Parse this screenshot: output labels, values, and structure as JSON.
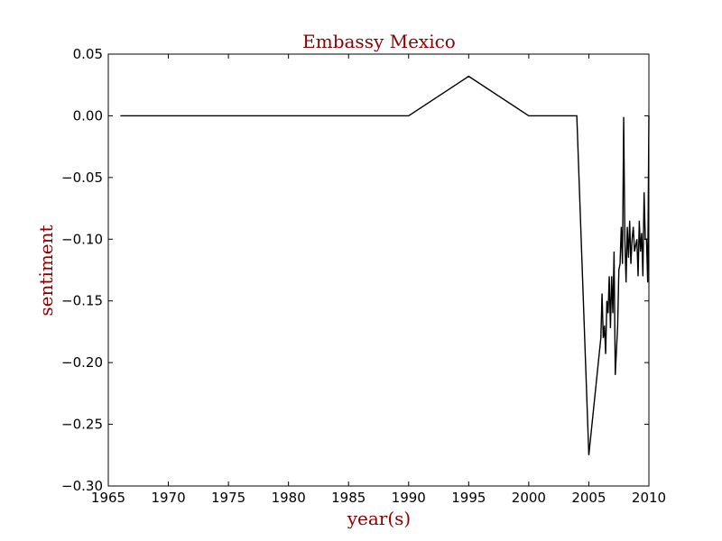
{
  "colors": {
    "label_color": "#8b0000",
    "line_color": "#000000",
    "frame_color": "#000000"
  },
  "chart_data": {
    "type": "line",
    "title": "Embassy Mexico",
    "xlabel": "year(s)",
    "ylabel": "sentiment",
    "xlim": [
      1965,
      2010
    ],
    "ylim": [
      -0.3,
      0.05
    ],
    "grid": false,
    "x_ticks": [
      1965,
      1970,
      1975,
      1980,
      1985,
      1990,
      1995,
      2000,
      2005,
      2010
    ],
    "x_tick_labels": [
      "1965",
      "1970",
      "1975",
      "1980",
      "1985",
      "1990",
      "1995",
      "2000",
      "2005",
      "2010"
    ],
    "y_ticks": [
      0.05,
      0.0,
      -0.05,
      -0.1,
      -0.15,
      -0.2,
      -0.25,
      -0.3
    ],
    "y_tick_labels": [
      "0.05",
      "0.00",
      "−0.05",
      "−0.10",
      "−0.15",
      "−0.20",
      "−0.25",
      "−0.30"
    ],
    "series": [
      {
        "x": [
          1966.0,
          1990.0,
          1995.0,
          2000.0,
          2004.0,
          2005.0,
          2006.0,
          2006.1,
          2006.2,
          2006.3,
          2006.4,
          2006.5,
          2006.6,
          2006.7,
          2006.8,
          2006.9,
          2007.0,
          2007.1,
          2007.2,
          2007.3,
          2007.4,
          2007.5,
          2007.6,
          2007.7,
          2007.8,
          2007.9,
          2008.0,
          2008.1,
          2008.2,
          2008.3,
          2008.4,
          2008.5,
          2008.6,
          2008.7,
          2008.8,
          2008.9,
          2009.0,
          2009.1,
          2009.2,
          2009.3,
          2009.4,
          2009.5,
          2009.6,
          2009.7,
          2009.8,
          2009.9,
          2010.0
        ],
        "y": [
          0.0,
          0.0,
          0.032,
          0.0,
          0.0,
          -0.275,
          -0.18,
          -0.144,
          -0.18,
          -0.17,
          -0.193,
          -0.15,
          -0.16,
          -0.13,
          -0.172,
          -0.13,
          -0.16,
          -0.11,
          -0.21,
          -0.19,
          -0.17,
          -0.125,
          -0.12,
          -0.09,
          -0.12,
          -0.001,
          -0.1,
          -0.135,
          -0.09,
          -0.115,
          -0.085,
          -0.12,
          -0.1,
          -0.09,
          -0.11,
          -0.105,
          -0.1,
          -0.13,
          -0.085,
          -0.11,
          -0.095,
          -0.13,
          -0.062,
          -0.1,
          -0.1,
          -0.135,
          0.0
        ]
      }
    ]
  }
}
